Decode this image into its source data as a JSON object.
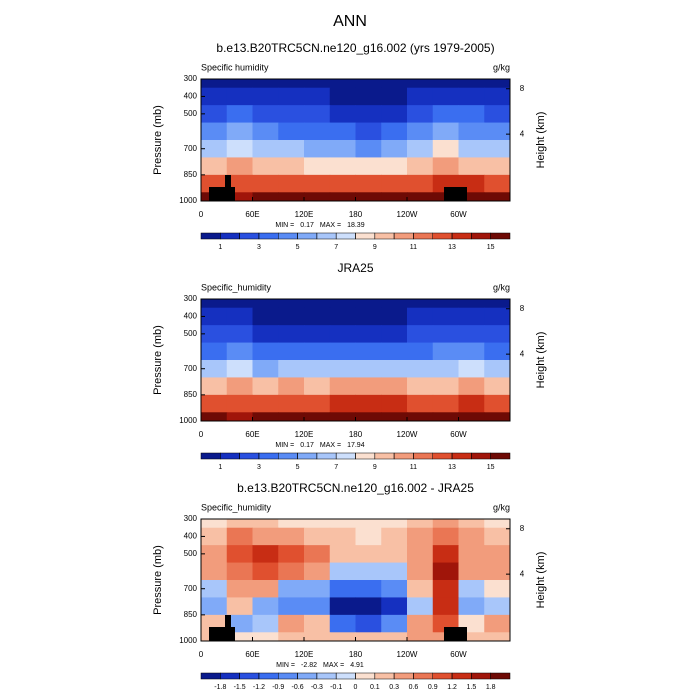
{
  "title": "ANN",
  "chart_data": [
    {
      "type": "heatmap",
      "title": "b.e13.B20TRC5CN.ne120_g16.002 (yrs 1979-2005)",
      "field_label": "Specific humidity",
      "units": "g/kg",
      "ylabel": "Pressure (mb)",
      "y2label": "Height (km)",
      "x": [
        15,
        45,
        75,
        105,
        135,
        165,
        195,
        225,
        255,
        285,
        315,
        345
      ],
      "y": [
        300,
        400,
        500,
        600,
        700,
        800,
        900,
        1000
      ],
      "z": [
        [
          0.6,
          0.8,
          0.6,
          0.5,
          0.5,
          0.4,
          0.4,
          0.4,
          0.6,
          0.8,
          0.7,
          0.6
        ],
        [
          1.2,
          1.8,
          1.3,
          1.1,
          1.0,
          0.8,
          0.8,
          0.9,
          1.3,
          1.9,
          1.5,
          1.2
        ],
        [
          2.5,
          3.5,
          2.6,
          2.3,
          2.0,
          1.7,
          1.6,
          1.8,
          2.6,
          3.8,
          3.0,
          2.5
        ],
        [
          4.0,
          5.5,
          4.2,
          3.9,
          3.5,
          3.0,
          2.9,
          3.2,
          4.2,
          5.8,
          4.8,
          4.1
        ],
        [
          6.0,
          7.5,
          6.2,
          6.0,
          5.5,
          5.0,
          4.8,
          5.2,
          6.2,
          8.0,
          6.8,
          6.1
        ],
        [
          9.0,
          10.5,
          9.0,
          9.2,
          8.8,
          8.2,
          8.0,
          8.4,
          9.3,
          10.8,
          9.8,
          9.2
        ],
        [
          12.5,
          12.0,
          12.4,
          12.8,
          12.6,
          12.2,
          12.0,
          12.3,
          12.8,
          13.5,
          13.2,
          12.8
        ],
        [
          15.5,
          14.5,
          15.4,
          15.8,
          15.6,
          15.3,
          15.2,
          15.4,
          15.8,
          16.2,
          16.0,
          15.6
        ]
      ],
      "xlim": [
        0,
        360
      ],
      "xticks": [
        0,
        {
          "value": 60,
          "label": "60E"
        },
        {
          "value": 120,
          "label": "120E"
        },
        180,
        {
          "value": 240,
          "label": "120W"
        },
        {
          "value": 300,
          "label": "60W"
        }
      ],
      "ylim": [
        1000,
        300
      ],
      "yticks": [
        300,
        400,
        500,
        700,
        850,
        1000
      ],
      "y2ticks": [
        4,
        8
      ],
      "min_label": "MIN =",
      "min": 0.17,
      "max_label": "MAX =",
      "max": 18.39,
      "levels": [
        1,
        2,
        3,
        4,
        5,
        6,
        7,
        8,
        9,
        10,
        11,
        12,
        13,
        14,
        15
      ],
      "level_label_every": 2,
      "colors": [
        "#0a1a8c",
        "#1530c0",
        "#2a50e0",
        "#3a6ef0",
        "#5a8cf5",
        "#80aaf8",
        "#a8c6fa",
        "#cddffc",
        "#fbe0d0",
        "#f8c0a5",
        "#f29c7c",
        "#ea7654",
        "#e0502f",
        "#c82d14",
        "#a0150a",
        "#6e0a05"
      ]
    },
    {
      "type": "heatmap",
      "title": "JRA25",
      "field_label": "Specific_humidity",
      "units": "g/kg",
      "ylabel": "Pressure (mb)",
      "y2label": "Height (km)",
      "x": [
        15,
        45,
        75,
        105,
        135,
        165,
        195,
        225,
        255,
        285,
        315,
        345
      ],
      "y": [
        300,
        400,
        500,
        600,
        700,
        800,
        900,
        1000
      ],
      "z": [
        [
          0.5,
          0.6,
          0.5,
          0.5,
          0.5,
          0.4,
          0.4,
          0.4,
          0.5,
          0.5,
          0.6,
          0.5
        ],
        [
          1.0,
          1.2,
          0.9,
          0.8,
          0.8,
          0.7,
          0.8,
          0.8,
          1.0,
          1.1,
          1.2,
          1.0
        ],
        [
          2.0,
          2.6,
          1.6,
          1.4,
          1.5,
          1.5,
          1.5,
          1.6,
          2.2,
          2.4,
          2.6,
          2.1
        ],
        [
          3.6,
          4.7,
          3.2,
          3.1,
          3.3,
          3.2,
          3.2,
          3.4,
          3.9,
          4.3,
          4.5,
          3.8
        ],
        [
          6.2,
          7.1,
          5.9,
          6.4,
          6.0,
          6.0,
          6.0,
          6.1,
          6.0,
          6.8,
          7.1,
          6.1
        ],
        [
          9.5,
          10.3,
          9.6,
          10.0,
          9.7,
          10.1,
          10.0,
          10.0,
          9.5,
          9.5,
          10.4,
          9.5
        ],
        [
          12.3,
          12.4,
          12.6,
          12.5,
          12.5,
          13.4,
          13.5,
          13.1,
          12.5,
          12.6,
          13.2,
          12.5
        ],
        [
          15.4,
          14.5,
          15.4,
          15.6,
          15.4,
          15.2,
          15.1,
          15.2,
          15.5,
          15.7,
          15.8,
          15.4
        ]
      ],
      "xlim": [
        0,
        360
      ],
      "xticks": [
        0,
        {
          "value": 60,
          "label": "60E"
        },
        {
          "value": 120,
          "label": "120E"
        },
        180,
        {
          "value": 240,
          "label": "120W"
        },
        {
          "value": 300,
          "label": "60W"
        }
      ],
      "ylim": [
        1000,
        300
      ],
      "yticks": [
        300,
        400,
        500,
        700,
        850,
        1000
      ],
      "y2ticks": [
        4,
        8
      ],
      "min_label": "MIN =",
      "min": 0.17,
      "max_label": "MAX =",
      "max": 17.94,
      "levels": [
        1,
        2,
        3,
        4,
        5,
        6,
        7,
        8,
        9,
        10,
        11,
        12,
        13,
        14,
        15
      ],
      "level_label_every": 2,
      "colors": [
        "#0a1a8c",
        "#1530c0",
        "#2a50e0",
        "#3a6ef0",
        "#5a8cf5",
        "#80aaf8",
        "#a8c6fa",
        "#cddffc",
        "#fbe0d0",
        "#f8c0a5",
        "#f29c7c",
        "#ea7654",
        "#e0502f",
        "#c82d14",
        "#a0150a",
        "#6e0a05"
      ]
    },
    {
      "type": "heatmap",
      "title": "b.e13.B20TRC5CN.ne120_g16.002 - JRA25",
      "field_label": "Specific_humidity",
      "units": "g/kg",
      "ylabel": "Pressure (mb)",
      "y2label": "Height (km)",
      "x": [
        15,
        45,
        75,
        105,
        135,
        165,
        195,
        225,
        255,
        285,
        315,
        345
      ],
      "y": [
        300,
        400,
        500,
        600,
        700,
        800,
        900,
        1000
      ],
      "z": [
        [
          0.05,
          0.2,
          0.1,
          0.05,
          0.05,
          0.0,
          0.0,
          0.0,
          0.1,
          0.3,
          0.1,
          0.05
        ],
        [
          0.2,
          0.6,
          0.5,
          0.4,
          0.2,
          0.1,
          0.0,
          0.1,
          0.3,
          0.8,
          0.3,
          0.2
        ],
        [
          0.5,
          0.9,
          1.3,
          1.0,
          0.6,
          0.2,
          0.1,
          0.2,
          0.4,
          1.4,
          0.4,
          0.4
        ],
        [
          0.4,
          0.8,
          1.0,
          0.8,
          0.3,
          -0.2,
          -0.3,
          -0.2,
          0.3,
          1.5,
          0.3,
          0.3
        ],
        [
          -0.2,
          0.4,
          0.3,
          -0.4,
          -0.5,
          -1.0,
          -1.2,
          -0.9,
          0.2,
          1.2,
          -0.3,
          0.0
        ],
        [
          -0.5,
          0.2,
          -0.6,
          -0.8,
          -0.9,
          -1.9,
          -2.0,
          -1.6,
          -0.2,
          1.3,
          -0.6,
          -0.3
        ],
        [
          0.2,
          -0.4,
          -0.2,
          0.3,
          0.1,
          -1.2,
          -1.5,
          -0.8,
          0.3,
          0.9,
          0.0,
          0.3
        ],
        [
          0.1,
          0.0,
          0.0,
          0.2,
          0.2,
          0.1,
          0.1,
          0.2,
          0.3,
          0.5,
          0.2,
          0.2
        ]
      ],
      "xlim": [
        0,
        360
      ],
      "xticks": [
        0,
        {
          "value": 60,
          "label": "60E"
        },
        {
          "value": 120,
          "label": "120E"
        },
        180,
        {
          "value": 240,
          "label": "120W"
        },
        {
          "value": 300,
          "label": "60W"
        }
      ],
      "ylim": [
        1000,
        300
      ],
      "yticks": [
        300,
        400,
        500,
        700,
        850,
        1000
      ],
      "y2ticks": [
        4,
        8
      ],
      "min_label": "MIN =",
      "min": -2.82,
      "max_label": "MAX =",
      "max": 4.91,
      "levels": [
        -1.8,
        -1.5,
        -1.2,
        -0.9,
        -0.6,
        -0.3,
        -0.1,
        0,
        0.1,
        0.3,
        0.6,
        0.9,
        1.2,
        1.5,
        1.8
      ],
      "level_label_every": 1,
      "colors": [
        "#0a1a8c",
        "#1530c0",
        "#2a50e0",
        "#3a6ef0",
        "#5a8cf5",
        "#80aaf8",
        "#a8c6fa",
        "#cddffc",
        "#fbe0d0",
        "#f8c0a5",
        "#f29c7c",
        "#ea7654",
        "#e0502f",
        "#c82d14",
        "#a0150a",
        "#6e0a05"
      ]
    }
  ]
}
